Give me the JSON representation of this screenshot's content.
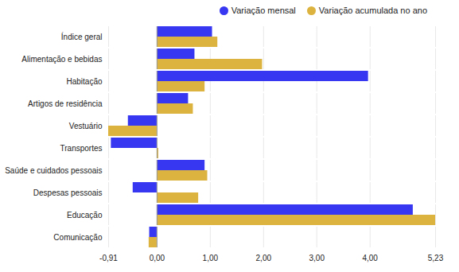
{
  "chart_data": {
    "type": "bar",
    "orientation": "horizontal",
    "categories": [
      "Índice geral",
      "Alimentação e bebidas",
      "Habitação",
      "Artigos de residência",
      "Vestuário",
      "Transportes",
      "Saúde e cuidados pessoais",
      "Despesas pessoais",
      "Educação",
      "Comunicação"
    ],
    "series": [
      {
        "name": "Variação mensal",
        "color": "#3737f2",
        "values": [
          1.04,
          0.71,
          3.97,
          0.59,
          -0.54,
          -0.86,
          0.9,
          -0.45,
          4.81,
          -0.14
        ]
      },
      {
        "name": "Variação acumulada no ano",
        "color": "#dcb33e",
        "values": [
          1.14,
          1.98,
          0.9,
          0.68,
          -0.91,
          0.03,
          0.95,
          0.78,
          5.23,
          -0.15
        ]
      }
    ],
    "xlim": [
      -0.91,
      5.23
    ],
    "xticks": [
      {
        "value": -0.91,
        "label": "-0,91"
      },
      {
        "value": 0,
        "label": "0,00"
      },
      {
        "value": 1,
        "label": "1,00"
      },
      {
        "value": 2,
        "label": "2,00"
      },
      {
        "value": 3,
        "label": "3,00"
      },
      {
        "value": 4,
        "label": "4,00"
      },
      {
        "value": 5.23,
        "label": "5,23"
      }
    ],
    "grid": true,
    "legend": "top-right"
  }
}
